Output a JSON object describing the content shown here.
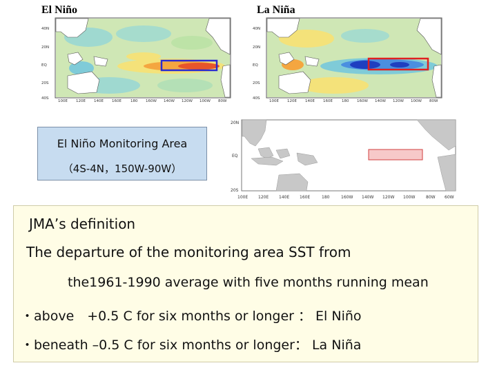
{
  "titles": {
    "el_nino": "El Niño",
    "la_nina": "La Niña"
  },
  "sst_map_labels": {
    "lat": [
      "40N",
      "20N",
      "EQ",
      "20S",
      "40S"
    ],
    "lon": [
      "100E",
      "120E",
      "140E",
      "160E",
      "180",
      "160W",
      "140W",
      "120W",
      "100W",
      "80W"
    ]
  },
  "monitoring_box": {
    "title": "El Niño Monitoring Area",
    "range": "（4S-4N，150W-90W）"
  },
  "region_map": {
    "lat": [
      "20N",
      "EQ",
      "20S"
    ],
    "lon": [
      "100E",
      "120E",
      "140E",
      "160E",
      "180",
      "160W",
      "140W",
      "120W",
      "100W",
      "80W",
      "60W"
    ]
  },
  "definition": {
    "heading": "JMA’s definition",
    "line1": "The departure of the monitoring area SST from",
    "line2": "the1961-1990 average with five months running mean",
    "bullet1": "・above　+0.5 C for six months or longer ： El Niño",
    "bullet2": "・beneath –0.5 C for six months or longer： La Niña"
  },
  "colors": {
    "box_fill": "#c7dcf0",
    "definition_fill": "#fffde6",
    "area_outline": "#e02020",
    "area_fill": "#f7c9c9"
  }
}
